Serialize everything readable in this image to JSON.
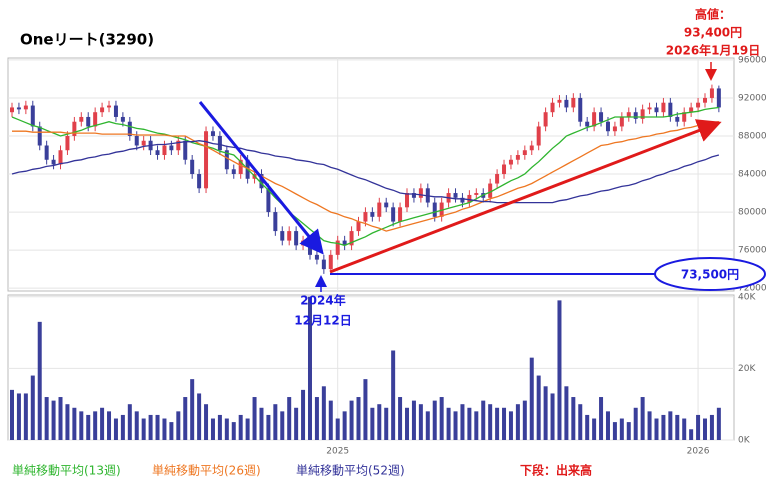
{
  "chart_data": {
    "type": "candlestick",
    "title": "Oneリート(3290)",
    "categories": [
      null,
      null,
      null,
      null,
      null,
      null,
      null,
      null,
      null,
      null,
      null,
      null,
      null,
      null,
      null,
      null,
      null,
      null,
      null,
      null,
      null,
      null,
      null,
      null,
      null,
      null,
      null,
      null,
      null,
      null,
      null,
      null,
      null,
      null,
      null,
      null,
      null,
      null,
      null,
      null,
      null,
      null,
      null,
      null,
      null,
      null,
      null,
      "2025",
      null,
      null,
      null,
      null,
      null,
      null,
      null,
      null,
      null,
      null,
      null,
      null,
      null,
      null,
      null,
      null,
      null,
      null,
      null,
      null,
      null,
      null,
      null,
      null,
      null,
      null,
      null,
      null,
      null,
      null,
      null,
      null,
      null,
      null,
      null,
      null,
      null,
      null,
      null,
      null,
      null,
      null,
      null,
      null,
      null,
      null,
      null,
      null,
      null,
      null,
      null,
      "2026",
      null,
      null,
      null
    ],
    "ohlc": [
      [
        90500,
        91500,
        90000,
        91000
      ],
      [
        91000,
        91500,
        90300,
        90800
      ],
      [
        90800,
        91700,
        90300,
        91200
      ],
      [
        91200,
        91700,
        88500,
        89000
      ],
      [
        89000,
        89500,
        86500,
        87000
      ],
      [
        87000,
        87500,
        85000,
        85500
      ],
      [
        85500,
        86000,
        84500,
        85000
      ],
      [
        85000,
        87000,
        84500,
        86500
      ],
      [
        86500,
        88500,
        86000,
        88000
      ],
      [
        88000,
        90000,
        87500,
        89500
      ],
      [
        89500,
        90500,
        89000,
        90000
      ],
      [
        90000,
        90500,
        88500,
        89000
      ],
      [
        89000,
        91000,
        88500,
        90500
      ],
      [
        90500,
        91500,
        90000,
        91000
      ],
      [
        91000,
        91700,
        90500,
        91200
      ],
      [
        91200,
        91700,
        89500,
        90000
      ],
      [
        90000,
        90500,
        89000,
        89500
      ],
      [
        89500,
        90000,
        87500,
        88000
      ],
      [
        88000,
        88500,
        86500,
        87000
      ],
      [
        87000,
        88000,
        86500,
        87500
      ],
      [
        87500,
        88000,
        86000,
        86500
      ],
      [
        86500,
        87000,
        85500,
        86000
      ],
      [
        86000,
        87500,
        85500,
        87000
      ],
      [
        87000,
        87500,
        86000,
        86500
      ],
      [
        86500,
        88000,
        86000,
        87500
      ],
      [
        87500,
        88000,
        85000,
        85500
      ],
      [
        85500,
        86000,
        83500,
        84000
      ],
      [
        84000,
        84500,
        82000,
        82500
      ],
      [
        82500,
        89000,
        82000,
        88500
      ],
      [
        88500,
        89000,
        87500,
        88000
      ],
      [
        88000,
        88500,
        86000,
        86500
      ],
      [
        86500,
        87000,
        84000,
        84500
      ],
      [
        84500,
        85000,
        83500,
        84000
      ],
      [
        84000,
        86000,
        83500,
        85500
      ],
      [
        85500,
        86000,
        83000,
        83500
      ],
      [
        83500,
        84500,
        83000,
        84000
      ],
      [
        84000,
        84500,
        82000,
        82500
      ],
      [
        82500,
        83000,
        79500,
        80000
      ],
      [
        80000,
        80500,
        77500,
        78000
      ],
      [
        78000,
        78500,
        76500,
        77000
      ],
      [
        77000,
        78500,
        76500,
        78000
      ],
      [
        78000,
        78500,
        76000,
        76500
      ],
      [
        76500,
        77500,
        76000,
        77000
      ],
      [
        77000,
        77500,
        75000,
        75500
      ],
      [
        75500,
        76000,
        74500,
        75000
      ],
      [
        75000,
        75500,
        73500,
        74000
      ],
      [
        74000,
        76000,
        73800,
        75500
      ],
      [
        75500,
        77500,
        75000,
        77000
      ],
      [
        77000,
        77500,
        76000,
        76500
      ],
      [
        76500,
        78500,
        76000,
        78000
      ],
      [
        78000,
        79500,
        77500,
        79000
      ],
      [
        79000,
        80500,
        78500,
        80000
      ],
      [
        80000,
        80500,
        79000,
        79500
      ],
      [
        79500,
        81500,
        79000,
        81000
      ],
      [
        81000,
        81500,
        80000,
        80500
      ],
      [
        80500,
        81000,
        78500,
        79000
      ],
      [
        79000,
        81000,
        78500,
        80500
      ],
      [
        80500,
        82500,
        80000,
        82000
      ],
      [
        82000,
        82500,
        81000,
        81500
      ],
      [
        81500,
        83000,
        81000,
        82500
      ],
      [
        82500,
        83000,
        80500,
        81000
      ],
      [
        81000,
        81500,
        79000,
        79500
      ],
      [
        79500,
        81500,
        79000,
        81000
      ],
      [
        81000,
        82500,
        80500,
        82000
      ],
      [
        82000,
        82500,
        81000,
        81500
      ],
      [
        81500,
        82000,
        80500,
        81000
      ],
      [
        81000,
        82300,
        80500,
        81800
      ],
      [
        81800,
        82500,
        81300,
        82000
      ],
      [
        82000,
        82500,
        81000,
        81500
      ],
      [
        81500,
        83500,
        81000,
        83000
      ],
      [
        83000,
        84500,
        82500,
        84000
      ],
      [
        84000,
        85500,
        83500,
        85000
      ],
      [
        85000,
        86000,
        84500,
        85500
      ],
      [
        85500,
        86500,
        85000,
        86000
      ],
      [
        86000,
        87000,
        85500,
        86500
      ],
      [
        86500,
        87500,
        86000,
        87000
      ],
      [
        87000,
        89500,
        86500,
        89000
      ],
      [
        89000,
        91000,
        88500,
        90500
      ],
      [
        90500,
        92000,
        90000,
        91500
      ],
      [
        91500,
        92300,
        91000,
        91800
      ],
      [
        91800,
        92300,
        90500,
        91000
      ],
      [
        91000,
        92500,
        90500,
        92000
      ],
      [
        92000,
        92500,
        89000,
        89500
      ],
      [
        89500,
        90000,
        88500,
        89000
      ],
      [
        89000,
        91000,
        88500,
        90500
      ],
      [
        90500,
        91000,
        89000,
        89500
      ],
      [
        89500,
        90000,
        88000,
        88500
      ],
      [
        88500,
        89500,
        88000,
        89000
      ],
      [
        89000,
        90500,
        88500,
        90000
      ],
      [
        90000,
        91000,
        89500,
        90500
      ],
      [
        90500,
        91000,
        89300,
        89800
      ],
      [
        89800,
        91300,
        89300,
        90800
      ],
      [
        90800,
        91500,
        90300,
        91000
      ],
      [
        91000,
        91500,
        90000,
        90500
      ],
      [
        90500,
        92000,
        90000,
        91500
      ],
      [
        91500,
        92000,
        89500,
        90000
      ],
      [
        90000,
        90500,
        89000,
        89500
      ],
      [
        89500,
        91000,
        89000,
        90500
      ],
      [
        90500,
        91500,
        90000,
        91000
      ],
      [
        91000,
        92000,
        90500,
        91500
      ],
      [
        91500,
        92500,
        91000,
        92000
      ],
      [
        92000,
        93400,
        91500,
        93000
      ],
      [
        93000,
        93300,
        90500,
        91000
      ]
    ],
    "up_color": "#e0404a",
    "down_color": "#3a3f9a",
    "ylim": [
      71700,
      96200
    ],
    "yticks": [
      72000,
      76000,
      80000,
      84000,
      88000,
      92000,
      96000
    ],
    "grid": true,
    "series": [
      {
        "name": "単純移動平均(13週)",
        "color": "#2fb52f",
        "values": [
          90000,
          89700,
          89400,
          89100,
          88900,
          88600,
          88300,
          88000,
          88200,
          88400,
          88600,
          88900,
          89100,
          89300,
          89500,
          89300,
          89200,
          89000,
          88800,
          88700,
          88500,
          88300,
          88200,
          88000,
          87800,
          87600,
          87300,
          87100,
          86900,
          86700,
          86400,
          86200,
          86000,
          85300,
          84500,
          83800,
          83000,
          82300,
          81500,
          80800,
          80000,
          79400,
          78800,
          78200,
          77600,
          77000,
          76800,
          76700,
          76500,
          76800,
          77100,
          77400,
          77800,
          78100,
          78400,
          78700,
          79000,
          79200,
          79400,
          79600,
          79800,
          80000,
          80200,
          80400,
          80600,
          80800,
          81000,
          81400,
          81800,
          82100,
          82500,
          82900,
          83300,
          83600,
          84000,
          84700,
          85300,
          86000,
          86700,
          87300,
          88000,
          88300,
          88600,
          88900,
          89100,
          89400,
          89700,
          90000,
          90000,
          90000,
          90000,
          90000,
          90000,
          90000,
          90000,
          90100,
          90300,
          90400,
          90500,
          90600,
          90800,
          90900,
          91000
        ]
      },
      {
        "name": "単純移動平均(26週)",
        "color": "#ee7722",
        "values": [
          88500,
          88500,
          88500,
          88400,
          88400,
          88400,
          88400,
          88400,
          88300,
          88300,
          88300,
          88300,
          88300,
          88200,
          88200,
          88200,
          88200,
          88200,
          88100,
          88100,
          88100,
          88100,
          88100,
          88000,
          88000,
          88000,
          87600,
          87200,
          86900,
          86500,
          86100,
          85700,
          85300,
          84900,
          84600,
          84200,
          83800,
          83400,
          83000,
          82700,
          82300,
          81900,
          81500,
          81100,
          80800,
          80400,
          80000,
          79800,
          79500,
          79300,
          79000,
          78800,
          78500,
          78300,
          78000,
          78200,
          78400,
          78600,
          78800,
          79000,
          79200,
          79400,
          79600,
          79800,
          80000,
          80300,
          80500,
          80800,
          81100,
          81400,
          81600,
          81900,
          82200,
          82500,
          82700,
          83000,
          83400,
          83800,
          84200,
          84600,
          85000,
          85400,
          85800,
          86200,
          86600,
          87000,
          87100,
          87300,
          87400,
          87600,
          87700,
          87900,
          88000,
          88200,
          88300,
          88500,
          88600,
          88800,
          88900,
          89100,
          89200,
          89400,
          89500
        ]
      },
      {
        "name": "単純移動平均(52週)",
        "color": "#333399",
        "values": [
          84000,
          84200,
          84300,
          84500,
          84600,
          84800,
          84900,
          85100,
          85200,
          85400,
          85500,
          85700,
          85800,
          86000,
          86100,
          86300,
          86400,
          86600,
          86700,
          86900,
          87000,
          87100,
          87100,
          87200,
          87300,
          87400,
          87400,
          87500,
          87400,
          87200,
          87100,
          86900,
          86800,
          86700,
          86500,
          86400,
          86200,
          86100,
          85900,
          85800,
          85700,
          85500,
          85400,
          85300,
          85100,
          85000,
          84700,
          84500,
          84200,
          83900,
          83600,
          83400,
          83100,
          82800,
          82500,
          82300,
          82000,
          81900,
          81900,
          81800,
          81700,
          81600,
          81600,
          81500,
          81400,
          81400,
          81300,
          81200,
          81100,
          81100,
          81000,
          81000,
          81000,
          81000,
          81000,
          81000,
          81000,
          81000,
          81000,
          81200,
          81300,
          81500,
          81700,
          81800,
          82000,
          82200,
          82300,
          82500,
          82700,
          82800,
          83000,
          83300,
          83500,
          83800,
          84000,
          84300,
          84500,
          84800,
          85000,
          85300,
          85500,
          85800,
          86000
        ]
      }
    ],
    "volume": {
      "name": "下段：出来高",
      "color": "#3a3f9a",
      "values": [
        14000,
        13000,
        13000,
        18000,
        33000,
        12000,
        11000,
        12000,
        10000,
        9000,
        8000,
        7000,
        8000,
        9000,
        8000,
        6000,
        7000,
        10000,
        8000,
        6000,
        7000,
        7000,
        6000,
        5000,
        8000,
        12000,
        17000,
        13000,
        10000,
        6000,
        7000,
        6000,
        5000,
        7000,
        6000,
        12000,
        9000,
        7000,
        10000,
        8000,
        12000,
        9000,
        14000,
        40000,
        12000,
        15000,
        11000,
        6000,
        8000,
        11000,
        12000,
        17000,
        9000,
        10000,
        9000,
        25000,
        12000,
        9000,
        11000,
        10000,
        8000,
        11000,
        12000,
        9000,
        8000,
        10000,
        9000,
        8000,
        11000,
        10000,
        9000,
        9000,
        8000,
        10000,
        11000,
        23000,
        18000,
        15000,
        13000,
        39000,
        15000,
        12000,
        10000,
        7000,
        6000,
        12000,
        8000,
        5000,
        6000,
        5000,
        9000,
        12000,
        8000,
        6000,
        7000,
        8000,
        7000,
        6000,
        3000,
        7000,
        6000,
        7000,
        9000
      ],
      "ylim": [
        0,
        40500
      ],
      "yticks": [
        {
          "value": 0,
          "label": "0K"
        },
        {
          "value": 20000,
          "label": "20K"
        },
        {
          "value": 40000,
          "label": "40K"
        }
      ]
    },
    "annotations": {
      "high_label": "高値：",
      "high_value": "93,400円",
      "high_date": "2026年1月19日",
      "low_year": "2024年",
      "low_day": "12月12日",
      "low_value": "73,500円"
    }
  }
}
